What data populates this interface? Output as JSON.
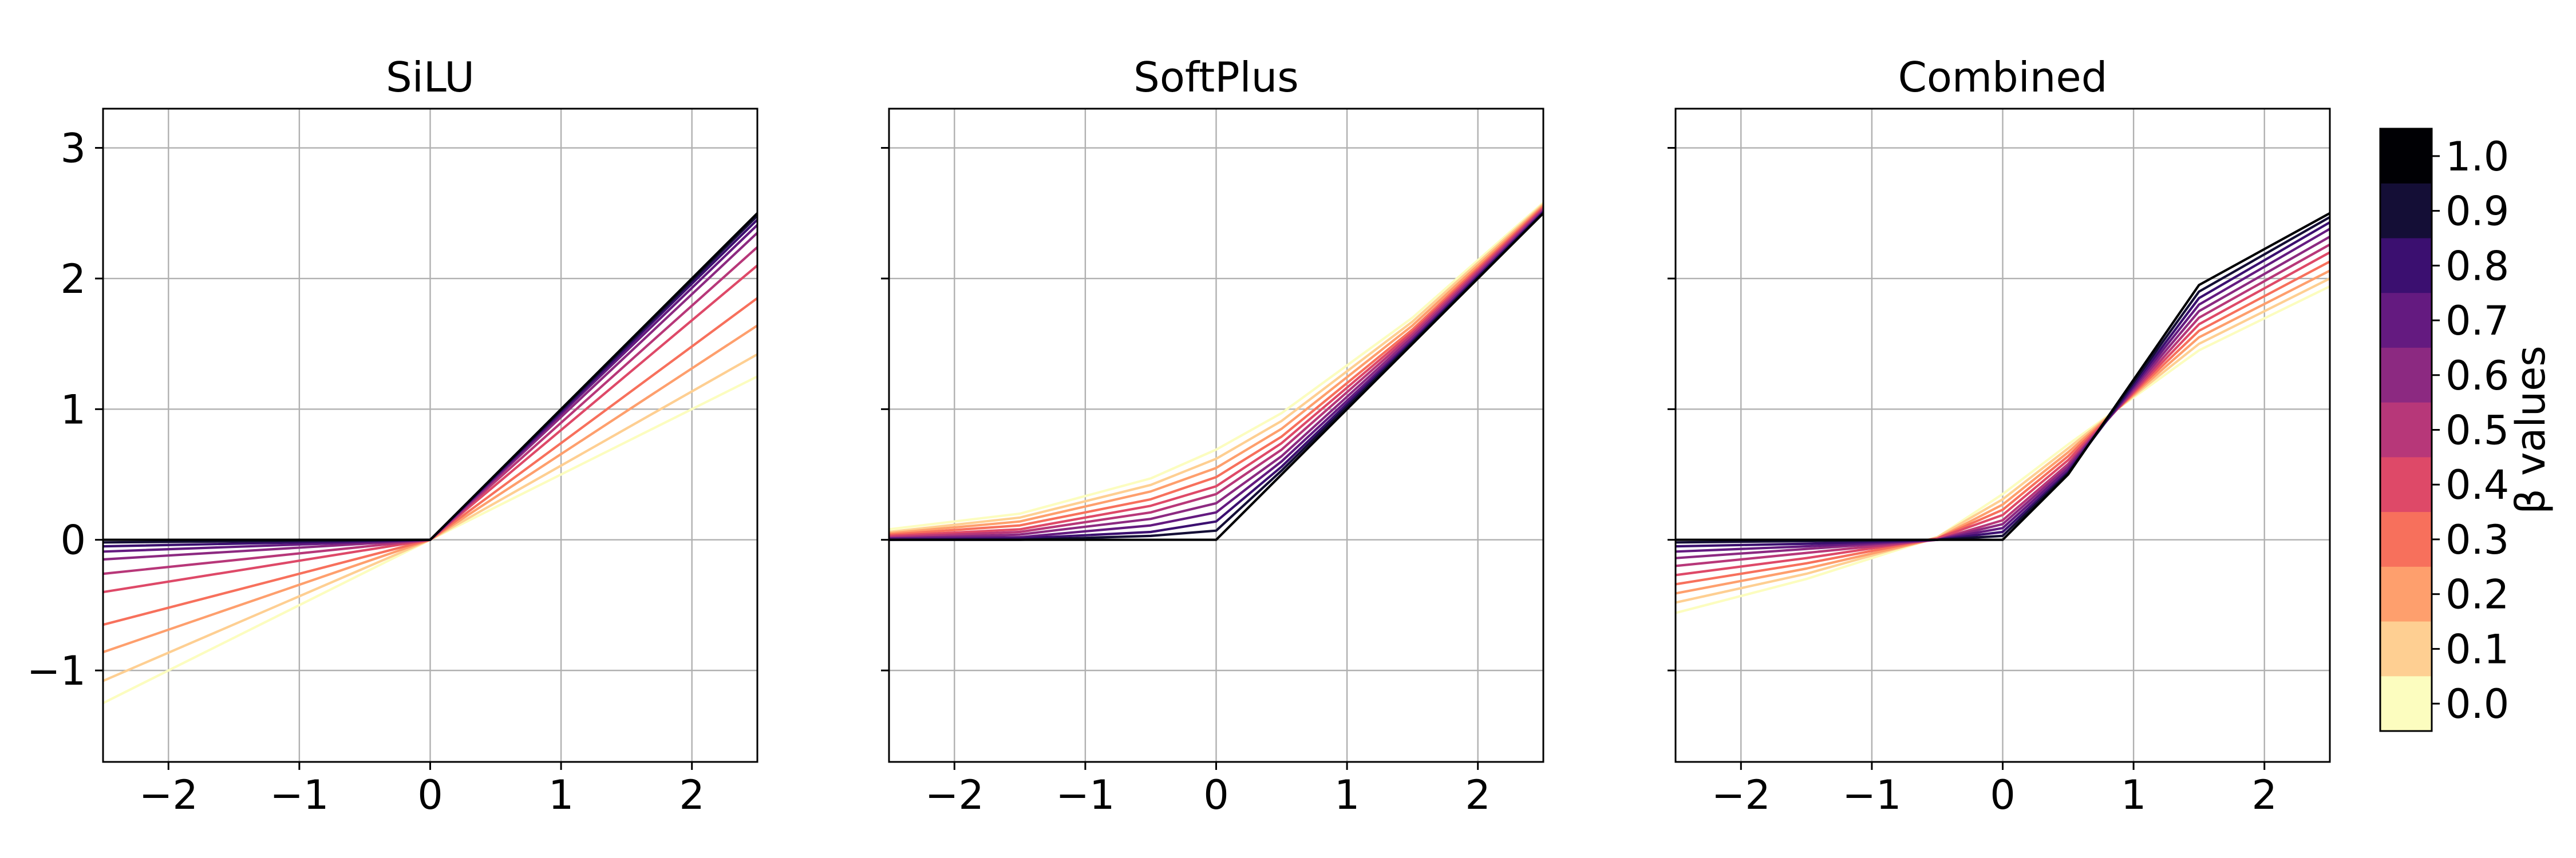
{
  "chart_data": [
    {
      "type": "line",
      "title": "SiLU",
      "xlabel": "",
      "ylabel": "",
      "xlim": [
        -2.5,
        2.5
      ],
      "ylim": [
        -1.7,
        3.3
      ],
      "xticks": [
        -2,
        -1,
        0,
        1,
        2
      ],
      "xtick_labels": [
        "−2",
        "−1",
        "0",
        "1",
        "2"
      ],
      "yticks": [
        -1,
        0,
        1,
        2,
        3
      ],
      "ytick_labels": [
        "−1",
        "0",
        "1",
        "2",
        "3"
      ],
      "grid": true,
      "series": [
        {
          "beta": 0.0,
          "x": [
            -2.5,
            0,
            2.5
          ],
          "y": [
            -1.25,
            0,
            1.25
          ]
        },
        {
          "beta": 0.1,
          "x": [
            -2.5,
            0,
            2.5
          ],
          "y": [
            -1.08,
            0,
            1.42
          ]
        },
        {
          "beta": 0.2,
          "x": [
            -2.5,
            0,
            2.5
          ],
          "y": [
            -0.86,
            0,
            1.64
          ]
        },
        {
          "beta": 0.3,
          "x": [
            -2.5,
            0,
            2.5
          ],
          "y": [
            -0.65,
            0,
            1.85
          ]
        },
        {
          "beta": 0.4,
          "x": [
            -2.5,
            0,
            2.5
          ],
          "y": [
            -0.4,
            0,
            2.1
          ]
        },
        {
          "beta": 0.5,
          "x": [
            -2.5,
            0,
            2.5
          ],
          "y": [
            -0.26,
            0,
            2.24
          ]
        },
        {
          "beta": 0.6,
          "x": [
            -2.5,
            0,
            2.5
          ],
          "y": [
            -0.15,
            0,
            2.35
          ]
        },
        {
          "beta": 0.7,
          "x": [
            -2.5,
            0,
            2.5
          ],
          "y": [
            -0.09,
            0,
            2.41
          ]
        },
        {
          "beta": 0.8,
          "x": [
            -2.5,
            0,
            2.5
          ],
          "y": [
            -0.05,
            0,
            2.45
          ]
        },
        {
          "beta": 0.9,
          "x": [
            -2.5,
            0,
            2.5
          ],
          "y": [
            -0.02,
            0,
            2.48
          ]
        },
        {
          "beta": 1.0,
          "x": [
            -2.5,
            0,
            2.5
          ],
          "y": [
            0.0,
            0,
            2.5
          ]
        }
      ]
    },
    {
      "type": "line",
      "title": "SoftPlus",
      "xlabel": "",
      "ylabel": "",
      "xlim": [
        -2.5,
        2.5
      ],
      "ylim": [
        -1.7,
        3.3
      ],
      "xticks": [
        -2,
        -1,
        0,
        1,
        2
      ],
      "xtick_labels": [
        "−2",
        "−1",
        "0",
        "1",
        "2"
      ],
      "yticks": [
        -1,
        0,
        1,
        2,
        3
      ],
      "ytick_labels": [],
      "grid": true,
      "series": [
        {
          "beta": 0.0,
          "x": [
            -2.5,
            -1.5,
            -0.5,
            0,
            0.5,
            1.5,
            2.5
          ],
          "y": [
            0.08,
            0.2,
            0.47,
            0.69,
            0.97,
            1.7,
            2.58
          ]
        },
        {
          "beta": 0.1,
          "x": [
            -2.5,
            -1.5,
            -0.5,
            0,
            0.5,
            1.5,
            2.5
          ],
          "y": [
            0.06,
            0.17,
            0.42,
            0.62,
            0.91,
            1.67,
            2.57
          ]
        },
        {
          "beta": 0.2,
          "x": [
            -2.5,
            -1.5,
            -0.5,
            0,
            0.5,
            1.5,
            2.5
          ],
          "y": [
            0.05,
            0.14,
            0.37,
            0.55,
            0.85,
            1.64,
            2.56
          ]
        },
        {
          "beta": 0.3,
          "x": [
            -2.5,
            -1.5,
            -0.5,
            0,
            0.5,
            1.5,
            2.5
          ],
          "y": [
            0.04,
            0.11,
            0.31,
            0.48,
            0.79,
            1.61,
            2.55
          ]
        },
        {
          "beta": 0.4,
          "x": [
            -2.5,
            -1.5,
            -0.5,
            0,
            0.5,
            1.5,
            2.5
          ],
          "y": [
            0.03,
            0.08,
            0.26,
            0.41,
            0.74,
            1.59,
            2.54
          ]
        },
        {
          "beta": 0.5,
          "x": [
            -2.5,
            -1.5,
            -0.5,
            0,
            0.5,
            1.5,
            2.5
          ],
          "y": [
            0.02,
            0.06,
            0.21,
            0.35,
            0.69,
            1.57,
            2.53
          ]
        },
        {
          "beta": 0.6,
          "x": [
            -2.5,
            -1.5,
            -0.5,
            0,
            0.5,
            1.5,
            2.5
          ],
          "y": [
            0.01,
            0.04,
            0.16,
            0.28,
            0.64,
            1.55,
            2.52
          ]
        },
        {
          "beta": 0.7,
          "x": [
            -2.5,
            -1.5,
            -0.5,
            0,
            0.5,
            1.5,
            2.5
          ],
          "y": [
            0.01,
            0.02,
            0.11,
            0.21,
            0.6,
            1.53,
            2.51
          ]
        },
        {
          "beta": 0.8,
          "x": [
            -2.5,
            -1.5,
            -0.5,
            0,
            0.5,
            1.5,
            2.5
          ],
          "y": [
            0.0,
            0.01,
            0.06,
            0.14,
            0.56,
            1.52,
            2.51
          ]
        },
        {
          "beta": 0.9,
          "x": [
            -2.5,
            -1.5,
            -0.5,
            0,
            0.5,
            1.5,
            2.5
          ],
          "y": [
            0.0,
            0.0,
            0.03,
            0.07,
            0.53,
            1.51,
            2.5
          ]
        },
        {
          "beta": 1.0,
          "x": [
            -2.5,
            -1.5,
            -0.5,
            0,
            0.5,
            1.5,
            2.5
          ],
          "y": [
            0.0,
            0.0,
            0.0,
            0.0,
            0.5,
            1.5,
            2.5
          ]
        }
      ]
    },
    {
      "type": "line",
      "title": "Combined",
      "xlabel": "",
      "ylabel": "",
      "xlim": [
        -2.5,
        2.5
      ],
      "ylim": [
        -1.7,
        3.3
      ],
      "xticks": [
        -2,
        -1,
        0,
        1,
        2
      ],
      "xtick_labels": [
        "−2",
        "−1",
        "0",
        "1",
        "2"
      ],
      "yticks": [
        -1,
        0,
        1,
        2,
        3
      ],
      "ytick_labels": [],
      "grid": true,
      "series": [
        {
          "beta": 0.0,
          "x": [
            -2.5,
            -1.5,
            -0.5,
            0,
            0.5,
            1.5,
            2.5
          ],
          "y": [
            -0.56,
            -0.3,
            0.02,
            0.35,
            0.73,
            1.45,
            1.94
          ]
        },
        {
          "beta": 0.1,
          "x": [
            -2.5,
            -1.5,
            -0.5,
            0,
            0.5,
            1.5,
            2.5
          ],
          "y": [
            -0.48,
            -0.26,
            0.02,
            0.31,
            0.7,
            1.5,
            2.0
          ]
        },
        {
          "beta": 0.2,
          "x": [
            -2.5,
            -1.5,
            -0.5,
            0,
            0.5,
            1.5,
            2.5
          ],
          "y": [
            -0.41,
            -0.22,
            0.01,
            0.27,
            0.67,
            1.55,
            2.06
          ]
        },
        {
          "beta": 0.3,
          "x": [
            -2.5,
            -1.5,
            -0.5,
            0,
            0.5,
            1.5,
            2.5
          ],
          "y": [
            -0.34,
            -0.18,
            0.01,
            0.23,
            0.64,
            1.6,
            2.13
          ]
        },
        {
          "beta": 0.4,
          "x": [
            -2.5,
            -1.5,
            -0.5,
            0,
            0.5,
            1.5,
            2.5
          ],
          "y": [
            -0.27,
            -0.14,
            0.01,
            0.19,
            0.61,
            1.65,
            2.2
          ]
        },
        {
          "beta": 0.5,
          "x": [
            -2.5,
            -1.5,
            -0.5,
            0,
            0.5,
            1.5,
            2.5
          ],
          "y": [
            -0.2,
            -0.1,
            0.0,
            0.15,
            0.58,
            1.7,
            2.26
          ]
        },
        {
          "beta": 0.6,
          "x": [
            -2.5,
            -1.5,
            -0.5,
            0,
            0.5,
            1.5,
            2.5
          ],
          "y": [
            -0.14,
            -0.07,
            0.0,
            0.12,
            0.56,
            1.75,
            2.32
          ]
        },
        {
          "beta": 0.7,
          "x": [
            -2.5,
            -1.5,
            -0.5,
            0,
            0.5,
            1.5,
            2.5
          ],
          "y": [
            -0.09,
            -0.05,
            0.0,
            0.09,
            0.54,
            1.8,
            2.38
          ]
        },
        {
          "beta": 0.8,
          "x": [
            -2.5,
            -1.5,
            -0.5,
            0,
            0.5,
            1.5,
            2.5
          ],
          "y": [
            -0.05,
            -0.03,
            0.0,
            0.06,
            0.52,
            1.85,
            2.43
          ]
        },
        {
          "beta": 0.9,
          "x": [
            -2.5,
            -1.5,
            -0.5,
            0,
            0.5,
            1.5,
            2.5
          ],
          "y": [
            -0.02,
            -0.01,
            0.0,
            0.03,
            0.51,
            1.9,
            2.47
          ]
        },
        {
          "beta": 1.0,
          "x": [
            -2.5,
            -1.5,
            -0.5,
            0,
            0.5,
            1.5,
            2.5
          ],
          "y": [
            0.0,
            0.0,
            0.0,
            0.0,
            0.5,
            1.95,
            2.5
          ]
        }
      ]
    }
  ],
  "colorbar": {
    "label": "β values",
    "colormap": "magma",
    "levels": [
      {
        "label": "1.0",
        "color": "#000004"
      },
      {
        "label": "0.9",
        "color": "#140e36"
      },
      {
        "label": "0.8",
        "color": "#3b0f70"
      },
      {
        "label": "0.7",
        "color": "#641a80"
      },
      {
        "label": "0.6",
        "color": "#8c2981"
      },
      {
        "label": "0.5",
        "color": "#b73779"
      },
      {
        "label": "0.4",
        "color": "#de4968"
      },
      {
        "label": "0.3",
        "color": "#f7705c"
      },
      {
        "label": "0.2",
        "color": "#fe9f6d"
      },
      {
        "label": "0.1",
        "color": "#fecf92"
      },
      {
        "label": "0.0",
        "color": "#fcfdbf"
      }
    ]
  }
}
